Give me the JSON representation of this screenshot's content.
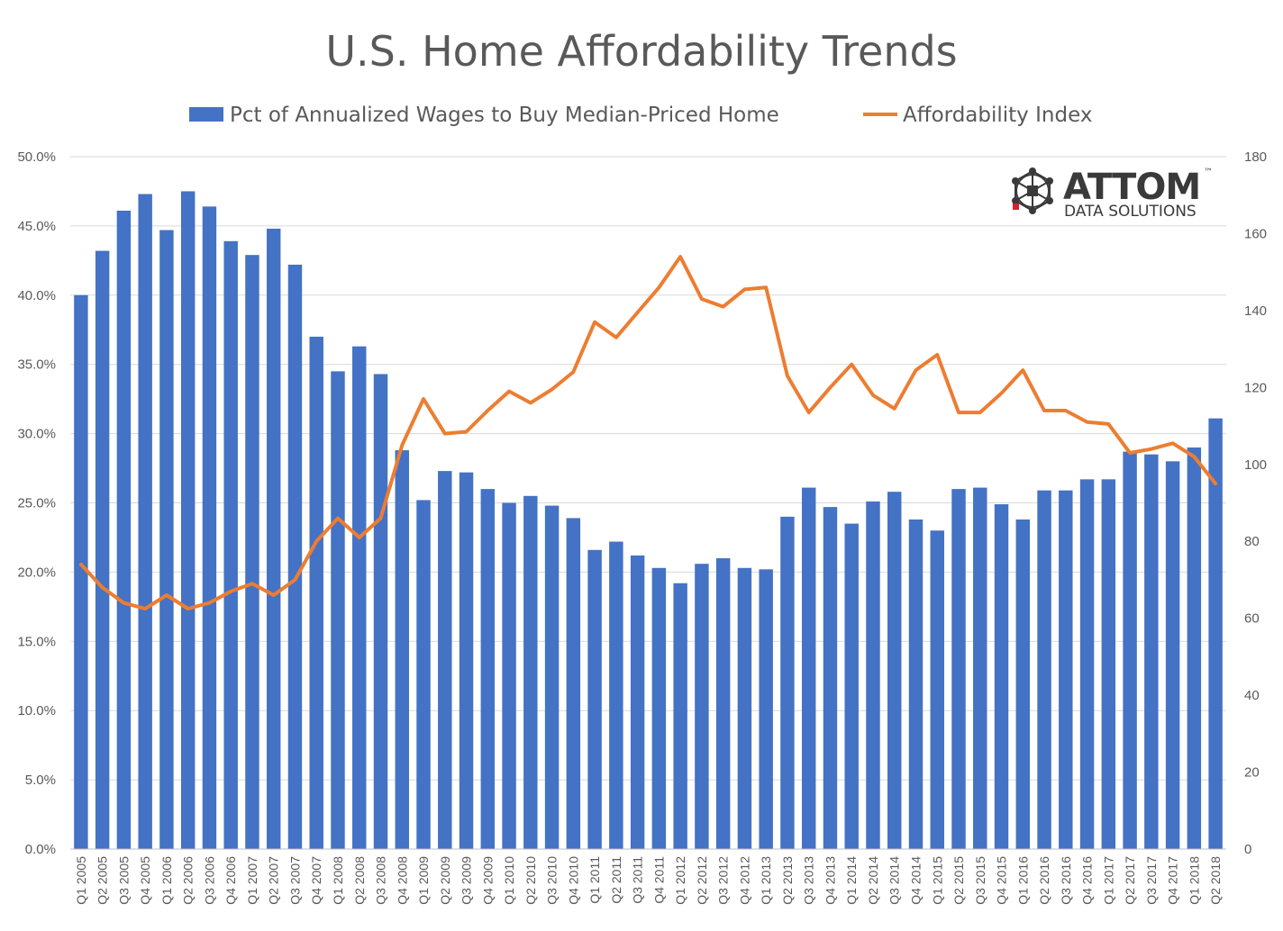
{
  "chart_data": {
    "type": "bar",
    "title": "U.S. Home Affordability Trends",
    "categories": [
      "Q1 2005",
      "Q2 2005",
      "Q3 2005",
      "Q4 2005",
      "Q1 2006",
      "Q2 2006",
      "Q3 2006",
      "Q4 2006",
      "Q1 2007",
      "Q2 2007",
      "Q3 2007",
      "Q4 2007",
      "Q1 2008",
      "Q2 2008",
      "Q3 2008",
      "Q4 2008",
      "Q1 2009",
      "Q2 2009",
      "Q3 2009",
      "Q4 2009",
      "Q1 2010",
      "Q2 2010",
      "Q3 2010",
      "Q4 2010",
      "Q1 2011",
      "Q2 2011",
      "Q3 2011",
      "Q4 2011",
      "Q1 2012",
      "Q2 2012",
      "Q3 2012",
      "Q4 2012",
      "Q1 2013",
      "Q2 2013",
      "Q3 2013",
      "Q4 2013",
      "Q1 2014",
      "Q2 2014",
      "Q3 2014",
      "Q4 2014",
      "Q1 2015",
      "Q2 2015",
      "Q3 2015",
      "Q4 2015",
      "Q1 2016",
      "Q2 2016",
      "Q3 2016",
      "Q4 2016",
      "Q1 2017",
      "Q2 2017",
      "Q3 2017",
      "Q4 2017",
      "Q1 2018",
      "Q2 2018"
    ],
    "series": [
      {
        "name": "Pct of Annualized Wages to Buy Median-Priced Home",
        "kind": "bar",
        "axis": "left",
        "color": "#4472C4",
        "values": [
          40.0,
          43.2,
          46.1,
          47.3,
          44.7,
          47.5,
          46.4,
          43.9,
          42.9,
          44.8,
          42.2,
          37.0,
          34.5,
          36.3,
          34.3,
          28.8,
          25.2,
          27.3,
          27.2,
          26.0,
          25.0,
          25.5,
          24.8,
          23.9,
          21.6,
          22.2,
          21.2,
          20.3,
          19.2,
          20.6,
          21.0,
          20.3,
          20.2,
          24.0,
          26.1,
          24.7,
          23.5,
          25.1,
          25.8,
          23.8,
          23.0,
          26.0,
          26.1,
          24.9,
          23.8,
          25.9,
          25.9,
          26.7,
          26.7,
          28.7,
          28.5,
          28.0,
          29.0,
          31.1
        ]
      },
      {
        "name": "Affordability Index",
        "kind": "line",
        "axis": "right",
        "color": "#ED7D31",
        "values": [
          74,
          68,
          64,
          62.5,
          66,
          62.5,
          64,
          67,
          69,
          66,
          70,
          80,
          86,
          81,
          86,
          105,
          117,
          108,
          108.5,
          114,
          119,
          116,
          119.5,
          124,
          137,
          133,
          139.5,
          146,
          154,
          143,
          141,
          145.5,
          146,
          123,
          113.5,
          120,
          126,
          118,
          114.5,
          124.5,
          128.5,
          113.5,
          113.5,
          118.5,
          124.5,
          114,
          114,
          111,
          110.5,
          103,
          104,
          105.5,
          102,
          95
        ]
      }
    ],
    "y_left": {
      "min": 0,
      "max": 50,
      "ticks": [
        "0.0%",
        "5.0%",
        "10.0%",
        "15.0%",
        "20.0%",
        "25.0%",
        "30.0%",
        "35.0%",
        "40.0%",
        "45.0%",
        "50.0%"
      ]
    },
    "y_right": {
      "min": 0,
      "max": 180,
      "ticks": [
        "0",
        "20",
        "40",
        "60",
        "80",
        "100",
        "120",
        "140",
        "160",
        "180"
      ]
    },
    "grid": true,
    "legend": "top"
  },
  "logo": {
    "brand": "ATTOM",
    "tm": "™",
    "sub": "DATA SOLUTIONS",
    "colors": {
      "dark": "#3a3a3a",
      "accent": "#d9202b"
    }
  }
}
